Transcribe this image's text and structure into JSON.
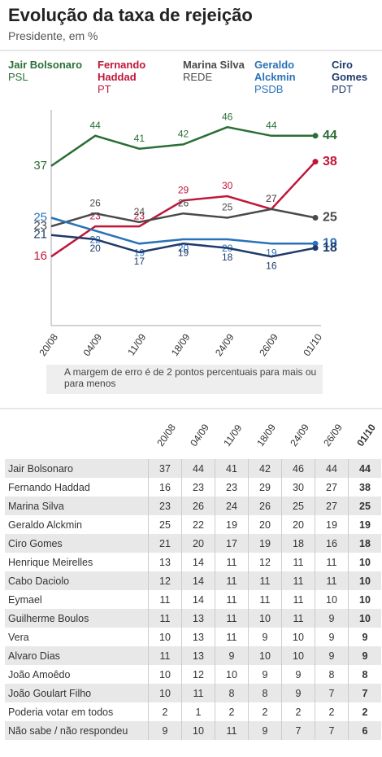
{
  "title": "Evolução da taxa de rejeição",
  "subtitle": "Presidente, em %",
  "chart_data": {
    "type": "line",
    "categories": [
      "20/08",
      "04/09",
      "11/09",
      "18/09",
      "24/09",
      "26/09",
      "01/10"
    ],
    "series": [
      {
        "name": "Jair Bolsonaro",
        "party": "PSL",
        "color": "#2a6e36",
        "values": [
          37,
          44,
          41,
          42,
          46,
          44,
          44
        ]
      },
      {
        "name": "Fernando Haddad",
        "party": "PT",
        "color": "#c0163a",
        "values": [
          16,
          23,
          23,
          29,
          30,
          27,
          38
        ]
      },
      {
        "name": "Marina Silva",
        "party": "REDE",
        "color": "#4a4a4a",
        "values": [
          23,
          26,
          24,
          26,
          25,
          27,
          25
        ]
      },
      {
        "name": "Geraldo Alckmin",
        "party": "PSDB",
        "color": "#2a72b8",
        "values": [
          25,
          22,
          19,
          20,
          20,
          19,
          19
        ]
      },
      {
        "name": "Ciro Gomes",
        "party": "PDT",
        "color": "#1f3a6b",
        "values": [
          21,
          20,
          17,
          19,
          18,
          16,
          18
        ]
      }
    ],
    "ylim": [
      0,
      50
    ],
    "note": "A margem de erro é de 2 pontos percentuais para mais ou para menos"
  },
  "table": {
    "columns": [
      "20/08",
      "04/09",
      "11/09",
      "18/09",
      "24/09",
      "26/09",
      "01/10"
    ],
    "rows": [
      [
        "Jair Bolsonaro",
        37,
        44,
        41,
        42,
        46,
        44,
        44
      ],
      [
        "Fernando Haddad",
        16,
        23,
        23,
        29,
        30,
        27,
        38
      ],
      [
        "Marina Silva",
        23,
        26,
        24,
        26,
        25,
        27,
        25
      ],
      [
        "Geraldo Alckmin",
        25,
        22,
        19,
        20,
        20,
        19,
        19
      ],
      [
        "Ciro Gomes",
        21,
        20,
        17,
        19,
        18,
        16,
        18
      ],
      [
        "Henrique Meirelles",
        13,
        14,
        11,
        12,
        11,
        11,
        10
      ],
      [
        "Cabo Daciolo",
        12,
        14,
        11,
        11,
        11,
        11,
        10
      ],
      [
        "Eymael",
        11,
        14,
        11,
        11,
        11,
        10,
        10
      ],
      [
        "Guilherme Boulos",
        11,
        13,
        11,
        10,
        11,
        9,
        10
      ],
      [
        "Vera",
        10,
        13,
        11,
        9,
        10,
        9,
        9
      ],
      [
        "Alvaro Dias",
        11,
        13,
        9,
        10,
        10,
        9,
        9
      ],
      [
        "João Amoêdo",
        10,
        12,
        10,
        9,
        9,
        8,
        8
      ],
      [
        "João Goulart Filho",
        10,
        11,
        8,
        8,
        9,
        7,
        7
      ],
      [
        "Poderia votar em todos",
        2,
        1,
        2,
        2,
        2,
        2,
        2
      ],
      [
        "Não sabe / não respondeu",
        9,
        10,
        11,
        9,
        7,
        7,
        6
      ]
    ]
  }
}
